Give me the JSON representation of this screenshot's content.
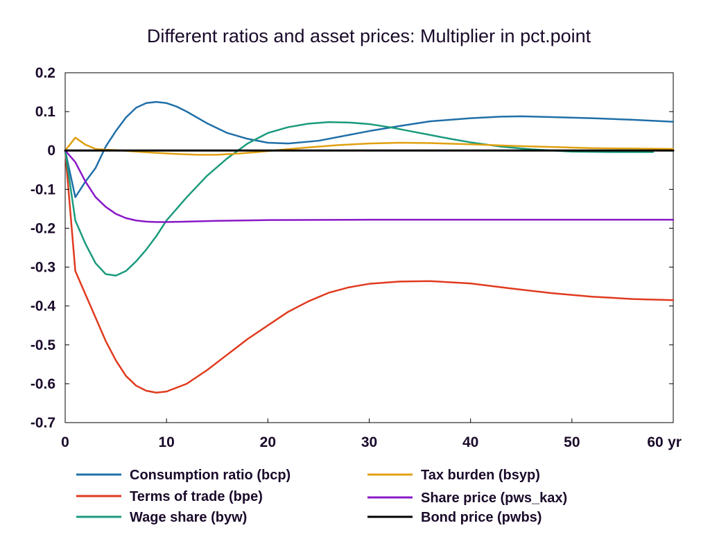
{
  "chart_data": {
    "type": "line",
    "title": "Different ratios and asset prices: Multiplier in pct.point",
    "xlabel": "",
    "ylabel": "",
    "x_unit_label": "yr",
    "xlim": [
      0,
      60
    ],
    "ylim": [
      -0.7,
      0.2
    ],
    "x_ticks": [
      0,
      10,
      20,
      30,
      40,
      50,
      60
    ],
    "x_tick_labels": [
      "0",
      "10",
      "20",
      "30",
      "40",
      "50",
      "60"
    ],
    "y_ticks": [
      0.2,
      0.1,
      0,
      -0.1,
      -0.2,
      -0.3,
      -0.4,
      -0.5,
      -0.6,
      -0.7
    ],
    "y_tick_labels": [
      "0.2",
      "0.1",
      "0",
      "-0.1",
      "-0.2",
      "-0.3",
      "-0.4",
      "-0.5",
      "-0.6",
      "-0.7"
    ],
    "grid": false,
    "legend_position": "bottom",
    "series": [
      {
        "name": "Consumption ratio (bcp)",
        "color": "#1f6fa8",
        "points": [
          [
            0,
            0
          ],
          [
            1,
            -0.12
          ],
          [
            2,
            -0.08
          ],
          [
            3,
            -0.045
          ],
          [
            4,
            0.01
          ],
          [
            5,
            0.05
          ],
          [
            6,
            0.085
          ],
          [
            7,
            0.11
          ],
          [
            8,
            0.122
          ],
          [
            9,
            0.125
          ],
          [
            10,
            0.122
          ],
          [
            11,
            0.113
          ],
          [
            12,
            0.1
          ],
          [
            14,
            0.07
          ],
          [
            16,
            0.045
          ],
          [
            18,
            0.03
          ],
          [
            20,
            0.02
          ],
          [
            22,
            0.018
          ],
          [
            25,
            0.025
          ],
          [
            28,
            0.04
          ],
          [
            30,
            0.05
          ],
          [
            33,
            0.063
          ],
          [
            36,
            0.075
          ],
          [
            40,
            0.083
          ],
          [
            43,
            0.087
          ],
          [
            45,
            0.088
          ],
          [
            48,
            0.086
          ],
          [
            52,
            0.083
          ],
          [
            56,
            0.079
          ],
          [
            60,
            0.074
          ]
        ]
      },
      {
        "name": "Terms of trade (bpe)",
        "color": "#e03a1e",
        "points": [
          [
            0,
            0
          ],
          [
            1,
            -0.31
          ],
          [
            2,
            -0.37
          ],
          [
            3,
            -0.43
          ],
          [
            4,
            -0.49
          ],
          [
            5,
            -0.54
          ],
          [
            6,
            -0.58
          ],
          [
            7,
            -0.605
          ],
          [
            8,
            -0.618
          ],
          [
            9,
            -0.623
          ],
          [
            10,
            -0.62
          ],
          [
            12,
            -0.6
          ],
          [
            14,
            -0.565
          ],
          [
            16,
            -0.525
          ],
          [
            18,
            -0.485
          ],
          [
            20,
            -0.45
          ],
          [
            22,
            -0.415
          ],
          [
            24,
            -0.388
          ],
          [
            26,
            -0.366
          ],
          [
            28,
            -0.352
          ],
          [
            30,
            -0.343
          ],
          [
            33,
            -0.337
          ],
          [
            36,
            -0.336
          ],
          [
            40,
            -0.342
          ],
          [
            44,
            -0.355
          ],
          [
            48,
            -0.367
          ],
          [
            52,
            -0.376
          ],
          [
            56,
            -0.382
          ],
          [
            60,
            -0.385
          ]
        ]
      },
      {
        "name": "Wage share (byw)",
        "color": "#1a9a7c",
        "points": [
          [
            0,
            0
          ],
          [
            1,
            -0.18
          ],
          [
            2,
            -0.24
          ],
          [
            3,
            -0.29
          ],
          [
            4,
            -0.318
          ],
          [
            5,
            -0.322
          ],
          [
            6,
            -0.31
          ],
          [
            7,
            -0.285
          ],
          [
            8,
            -0.255
          ],
          [
            9,
            -0.22
          ],
          [
            10,
            -0.18
          ],
          [
            12,
            -0.12
          ],
          [
            14,
            -0.065
          ],
          [
            16,
            -0.02
          ],
          [
            18,
            0.018
          ],
          [
            20,
            0.045
          ],
          [
            22,
            0.06
          ],
          [
            24,
            0.069
          ],
          [
            26,
            0.073
          ],
          [
            28,
            0.072
          ],
          [
            30,
            0.068
          ],
          [
            32,
            0.06
          ],
          [
            34,
            0.05
          ],
          [
            36,
            0.04
          ],
          [
            38,
            0.03
          ],
          [
            40,
            0.021
          ],
          [
            43,
            0.01
          ],
          [
            46,
            0.003
          ],
          [
            50,
            -0.003
          ],
          [
            54,
            -0.004
          ],
          [
            58,
            -0.004
          ]
        ]
      },
      {
        "name": "Tax burden (bsyp)",
        "color": "#e0a010",
        "points": [
          [
            0,
            0
          ],
          [
            1,
            0.033
          ],
          [
            2,
            0.015
          ],
          [
            3,
            0.004
          ],
          [
            4,
            0.002
          ],
          [
            5,
            0.001
          ],
          [
            7,
            -0.003
          ],
          [
            9,
            -0.006
          ],
          [
            11,
            -0.009
          ],
          [
            13,
            -0.011
          ],
          [
            15,
            -0.011
          ],
          [
            17,
            -0.008
          ],
          [
            19,
            -0.004
          ],
          [
            21,
            0.001
          ],
          [
            24,
            0.008
          ],
          [
            27,
            0.014
          ],
          [
            30,
            0.018
          ],
          [
            33,
            0.02
          ],
          [
            36,
            0.019
          ],
          [
            40,
            0.016
          ],
          [
            44,
            0.012
          ],
          [
            48,
            0.009
          ],
          [
            52,
            0.006
          ],
          [
            56,
            0.005
          ],
          [
            60,
            0.004
          ]
        ]
      },
      {
        "name": "Share price (pws_kax)",
        "color": "#8a18c8",
        "points": [
          [
            0,
            0
          ],
          [
            1,
            -0.03
          ],
          [
            2,
            -0.08
          ],
          [
            3,
            -0.12
          ],
          [
            4,
            -0.145
          ],
          [
            5,
            -0.163
          ],
          [
            6,
            -0.174
          ],
          [
            7,
            -0.18
          ],
          [
            8,
            -0.183
          ],
          [
            9,
            -0.184
          ],
          [
            10,
            -0.184
          ],
          [
            12,
            -0.183
          ],
          [
            15,
            -0.181
          ],
          [
            20,
            -0.179
          ],
          [
            30,
            -0.178
          ],
          [
            40,
            -0.178
          ],
          [
            50,
            -0.178
          ],
          [
            60,
            -0.178
          ]
        ]
      },
      {
        "name": "Bond price (pwbs)",
        "color": "#000000",
        "points": [
          [
            0,
            0
          ],
          [
            60,
            0
          ]
        ]
      }
    ]
  }
}
